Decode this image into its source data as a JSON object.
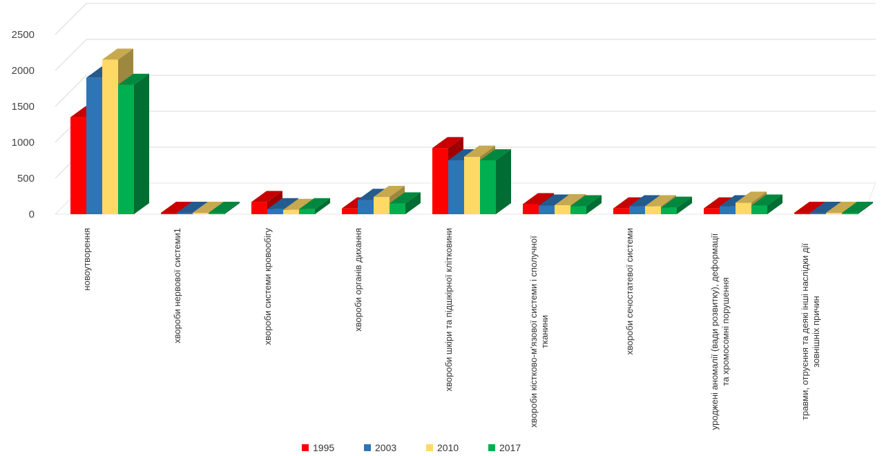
{
  "chart_data": {
    "type": "bar",
    "categories": [
      "новоутворення",
      "хвороби нервової системи1",
      "хвороби системи кровообігу",
      "хвороби органів дихання",
      "хвороби шкіри та підшкірної клітковини",
      "хвороби кістково-м'язової системи і сполучної тканини",
      "хвороби сечостатевої системи",
      "уроджені аномалії (вади розвитку), деформації та хромосомні порушення",
      "травми, отруєння та деякі інші наслідки дії зовнішніх причин"
    ],
    "category_lines": [
      [
        "новоутворення"
      ],
      [
        "хвороби нервової системи1"
      ],
      [
        "хвороби системи кровообігу"
      ],
      [
        "хвороби органів дихання"
      ],
      [
        "хвороби шкіри та підшкірної клітковини"
      ],
      [
        "хвороби кістково-м'язової системи і сполучної",
        "тканини"
      ],
      [
        "хвороби сечостатевої системи"
      ],
      [
        "уроджені аномалії (вади розвитку), деформації",
        "та хромосомні порушення"
      ],
      [
        "травми, отруєння та деякі інші наслідки дії",
        "зовнішніх причин"
      ]
    ],
    "series": [
      {
        "name": "1995",
        "color": "#ff0000",
        "values": [
          1350,
          5,
          170,
          80,
          920,
          140,
          80,
          80,
          5
        ]
      },
      {
        "name": "2003",
        "color": "#2e75b6",
        "values": [
          1900,
          10,
          70,
          200,
          750,
          120,
          110,
          110,
          5
        ]
      },
      {
        "name": "2010",
        "color": "#ffd966",
        "values": [
          2150,
          15,
          60,
          240,
          800,
          125,
          110,
          160,
          10
        ]
      },
      {
        "name": "2017",
        "color": "#00b050",
        "values": [
          1800,
          10,
          70,
          150,
          750,
          110,
          90,
          120,
          10
        ]
      }
    ],
    "yticks": [
      "0",
      "500",
      "1000",
      "1500",
      "2000",
      "2500"
    ],
    "ylim": [
      0,
      2500
    ],
    "grid": true,
    "legend_position": "bottom"
  }
}
